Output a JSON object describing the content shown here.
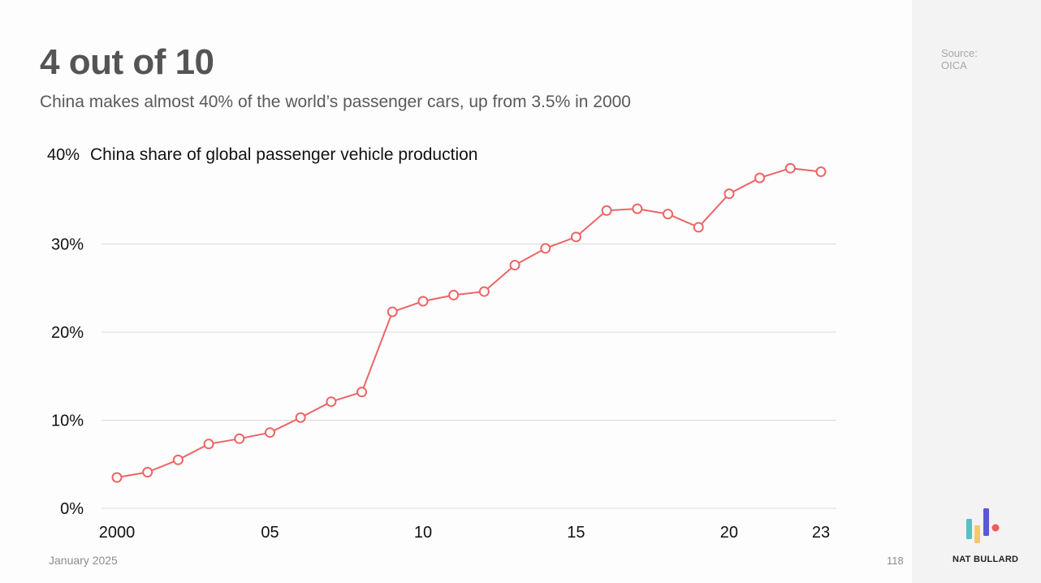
{
  "slide": {
    "title": "4 out of 10",
    "subtitle": "China makes almost 40% of the world’s passenger cars, up from 3.5% in 2000",
    "source_label": "Source:",
    "source_name": "OICA",
    "date": "January 2025",
    "page_number": "118",
    "brand": "NAT BULLARD"
  },
  "colors": {
    "series": "#ec6565",
    "logo_teal": "#4fc3c7",
    "logo_yellow": "#f5c86a",
    "logo_purple": "#5b57d9",
    "logo_red": "#ee5a5a"
  },
  "chart_data": {
    "type": "line",
    "title": "China share of global passenger vehicle production",
    "ylabel": "",
    "xlabel": "",
    "ylim": [
      0,
      40
    ],
    "yticks": [
      0,
      10,
      20,
      30,
      40
    ],
    "ytick_labels": [
      "0%",
      "10%",
      "20%",
      "30%",
      "40%"
    ],
    "xticks": [
      2000,
      2005,
      2010,
      2015,
      2020,
      2023
    ],
    "xtick_labels": [
      "2000",
      "05",
      "10",
      "15",
      "20",
      "23"
    ],
    "x": [
      2000,
      2001,
      2002,
      2003,
      2004,
      2005,
      2006,
      2007,
      2008,
      2009,
      2010,
      2011,
      2012,
      2013,
      2014,
      2015,
      2016,
      2017,
      2018,
      2019,
      2020,
      2021,
      2022,
      2023
    ],
    "series": [
      {
        "name": "China share",
        "values": [
          3.5,
          4.1,
          5.5,
          7.3,
          7.9,
          8.6,
          10.3,
          12.1,
          13.2,
          22.3,
          23.5,
          24.2,
          24.6,
          27.6,
          29.5,
          30.8,
          33.8,
          34.0,
          33.4,
          31.9,
          35.7,
          37.5,
          38.6,
          38.2
        ]
      }
    ]
  }
}
